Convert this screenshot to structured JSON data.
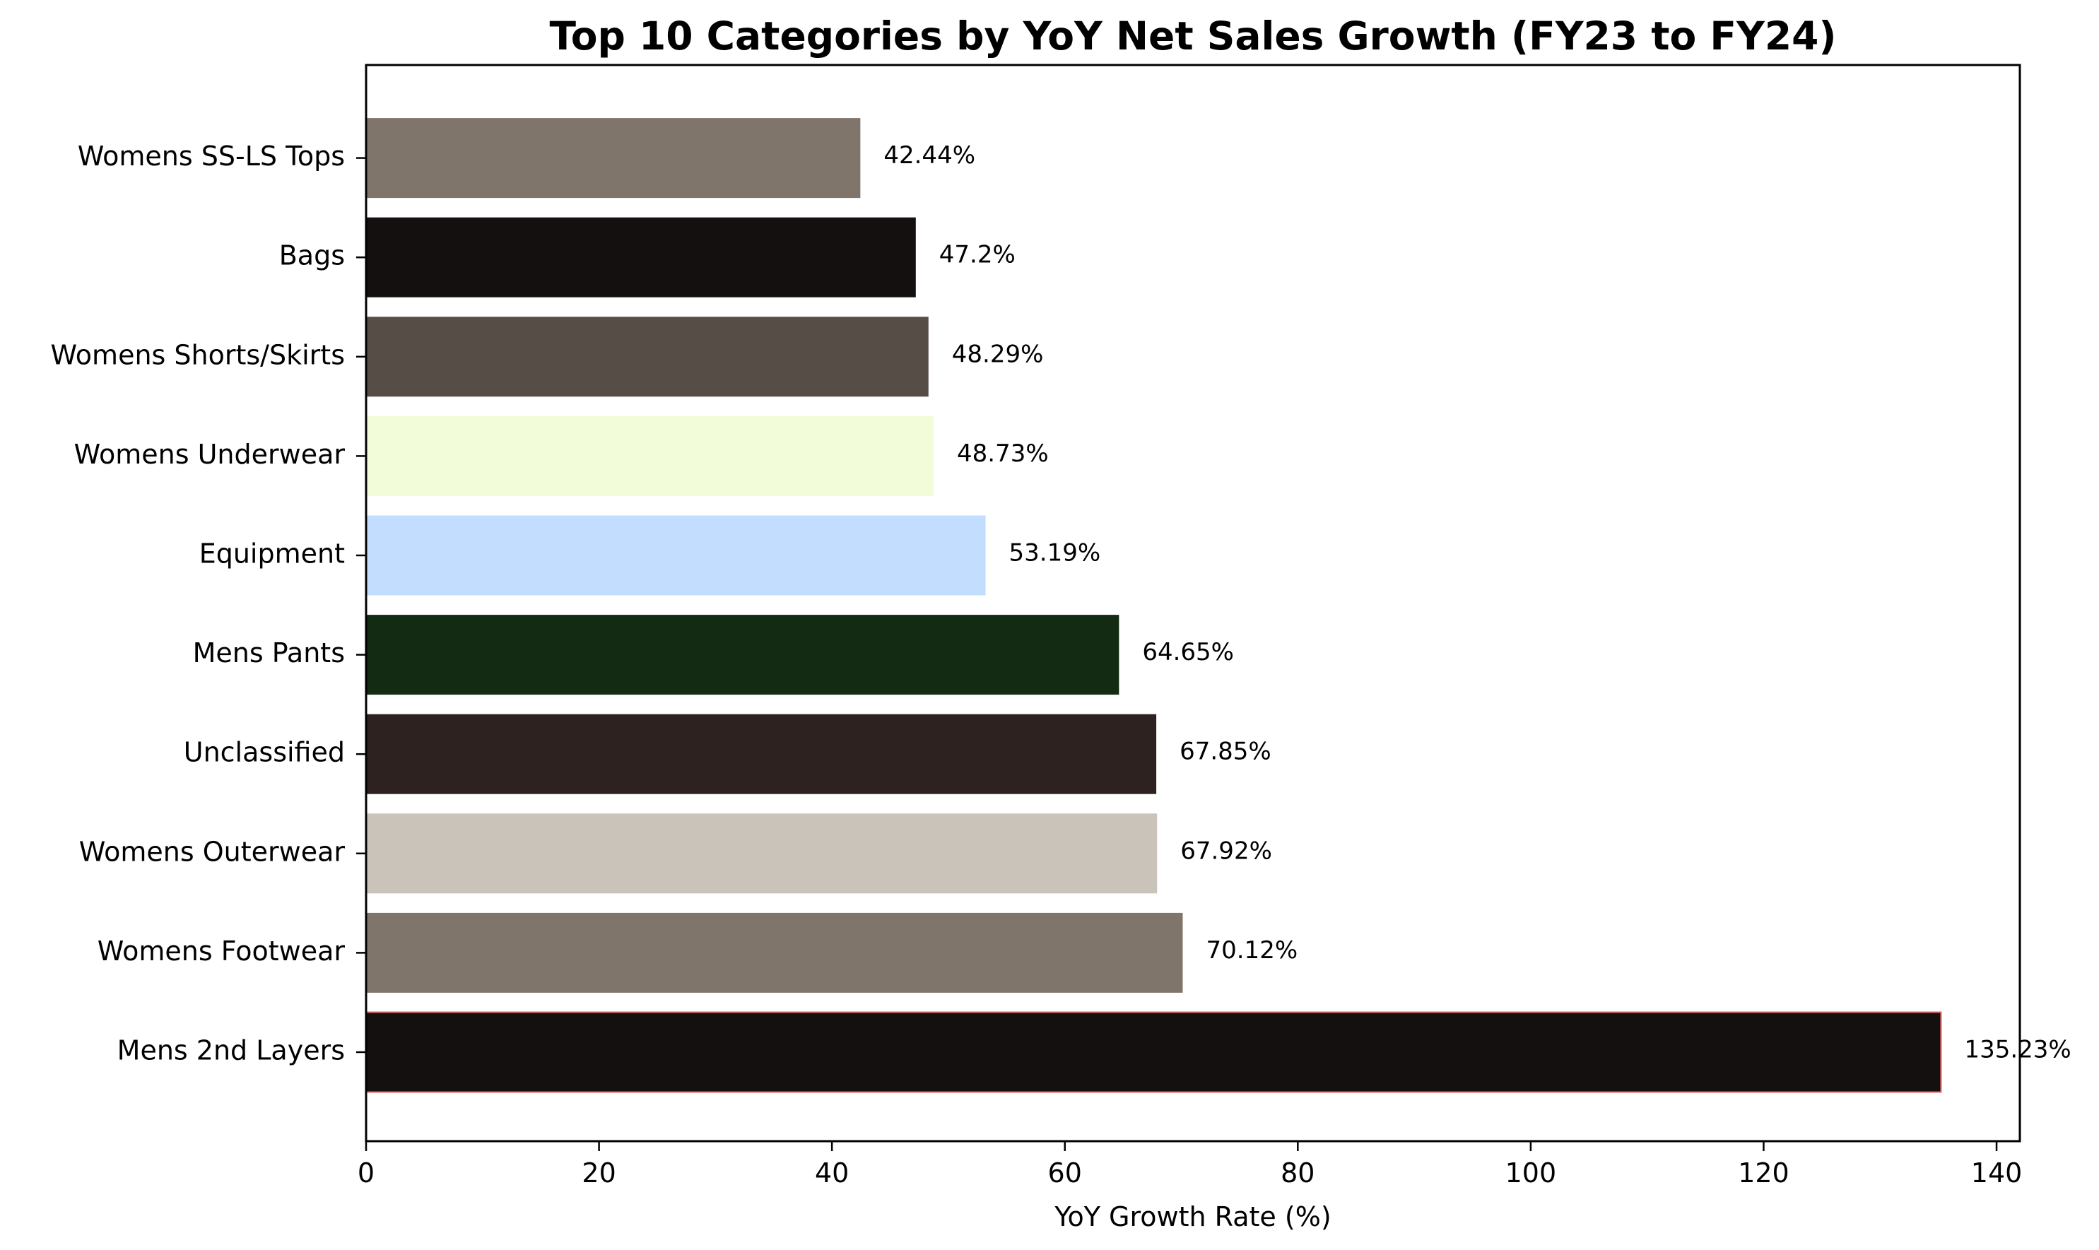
{
  "chart_data": {
    "type": "bar",
    "orientation": "horizontal",
    "title": "Top 10 Categories by YoY Net Sales Growth (FY23 to FY24)",
    "xlabel": "YoY Growth Rate (%)",
    "ylabel": "",
    "xlim": [
      0,
      142
    ],
    "xticks": [
      0,
      20,
      40,
      60,
      80,
      100,
      120,
      140
    ],
    "grid": false,
    "legend": "none",
    "categories": [
      "Mens 2nd Layers",
      "Womens Footwear",
      "Womens Outerwear",
      "Unclassified",
      "Mens Pants",
      "Equipment",
      "Womens Underwear",
      "Womens Shorts/Skirts",
      "Bags",
      "Womens SS-LS Tops"
    ],
    "values": [
      135.23,
      70.12,
      67.92,
      67.85,
      64.65,
      53.19,
      48.73,
      48.29,
      47.2,
      42.44
    ],
    "value_labels": [
      "135.23%",
      "70.12%",
      "67.92%",
      "67.85%",
      "64.65%",
      "53.19%",
      "48.73%",
      "48.29%",
      "47.2%",
      "42.44%"
    ],
    "colors": [
      "#141010",
      "#7f756b",
      "#c9c3b9",
      "#2d2220",
      "#132b12",
      "#c2ddfe",
      "#f2fcd8",
      "#564d47",
      "#141010",
      "#7f756b"
    ],
    "highlight_edge_color": "#e06666"
  }
}
